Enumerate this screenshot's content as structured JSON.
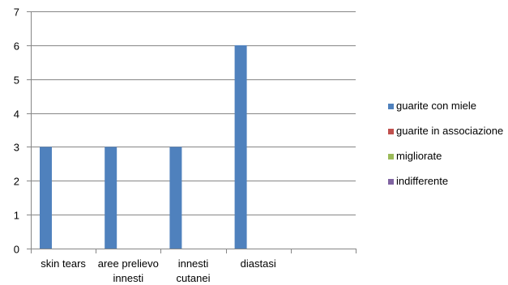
{
  "chart_data": {
    "type": "bar",
    "categories": [
      [
        "skin tears"
      ],
      [
        "aree prelievo",
        "innesti"
      ],
      [
        "innesti",
        "cutanei"
      ],
      [
        "diastasi"
      ],
      [
        ""
      ]
    ],
    "series": [
      {
        "name": "guarite con miele",
        "values": [
          3,
          3,
          3,
          6,
          0
        ],
        "color": "#4F81BD"
      },
      {
        "name": "guarite in associazione",
        "values": [
          0,
          0,
          0,
          0,
          0
        ],
        "color": "#C0504D"
      },
      {
        "name": "migliorate",
        "values": [
          0,
          0,
          0,
          0,
          0
        ],
        "color": "#9BBB59"
      },
      {
        "name": "indifferente",
        "values": [
          0,
          0,
          0,
          0,
          0
        ],
        "color": "#8064A2"
      }
    ],
    "yticks": [
      "0",
      "1",
      "2",
      "3",
      "4",
      "5",
      "6",
      "7"
    ],
    "ylim": [
      0,
      7
    ],
    "grid": true,
    "legend_position": "right",
    "gridline_color": "#868686",
    "axis_color": "#868686"
  }
}
